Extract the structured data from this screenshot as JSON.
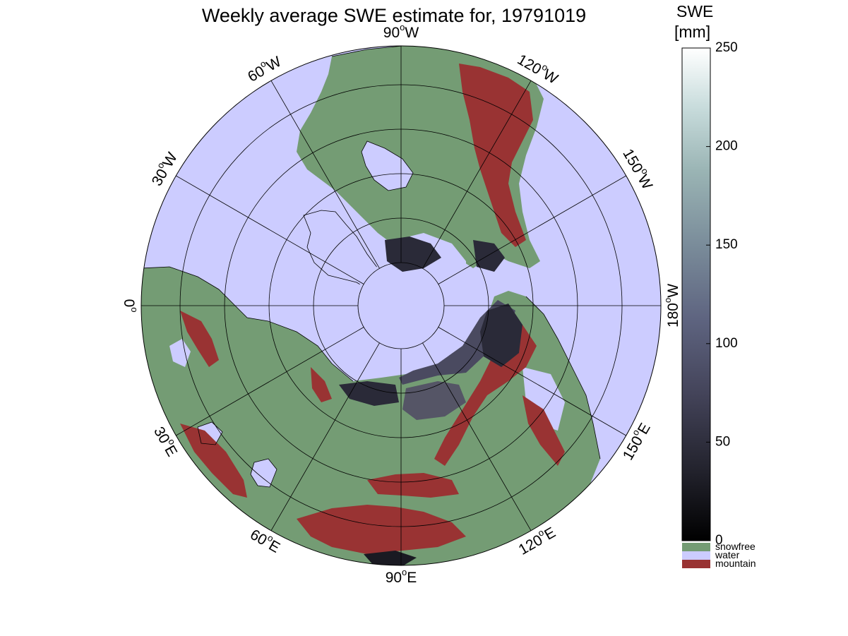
{
  "title": "Weekly average SWE estimate for, 19791019",
  "map": {
    "projection": "north polar stereographic",
    "colors": {
      "snowfree": "#749c74",
      "water": "#ccccff",
      "mountain": "#993333",
      "snow_dark": "#2a2a38",
      "snow_mid": "#4a4a60",
      "coastline": "#000000",
      "graticule": "#000000"
    },
    "longitude_labels": [
      {
        "deg": "0",
        "suffix": ""
      },
      {
        "deg": "30",
        "suffix": "E"
      },
      {
        "deg": "60",
        "suffix": "E"
      },
      {
        "deg": "90",
        "suffix": "E"
      },
      {
        "deg": "120",
        "suffix": "E"
      },
      {
        "deg": "150",
        "suffix": "E"
      },
      {
        "deg": "180",
        "suffix": "W"
      },
      {
        "deg": "150",
        "suffix": "W"
      },
      {
        "deg": "120",
        "suffix": "W"
      },
      {
        "deg": "90",
        "suffix": "W"
      },
      {
        "deg": "60",
        "suffix": "W"
      },
      {
        "deg": "30",
        "suffix": "W"
      }
    ]
  },
  "colorbar": {
    "title_line1": "SWE",
    "title_line2": "[mm]",
    "ticks": [
      "0",
      "50",
      "100",
      "150",
      "200",
      "250"
    ],
    "range": [
      0,
      250
    ],
    "gradient": [
      "#000000",
      "#22222c",
      "#44445a",
      "#5e6480",
      "#7a8c9a",
      "#9ab4b4",
      "#c8dcdc",
      "#ffffff"
    ],
    "categories": [
      {
        "label": "snowfree",
        "color": "#749c74"
      },
      {
        "label": "water",
        "color": "#ccccff"
      },
      {
        "label": "mountain",
        "color": "#993333"
      }
    ]
  }
}
